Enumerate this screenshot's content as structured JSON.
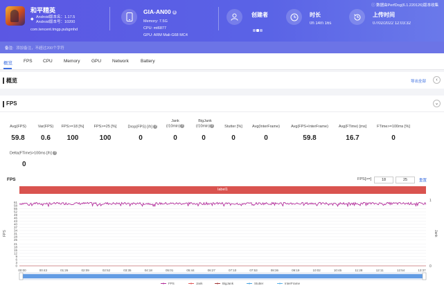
{
  "app": {
    "name": "和平精英",
    "android_version": "Android版本名：1.17.5",
    "android_code": "Android版本号：10200",
    "package": "com.tencent.tmgp.pubgmhd"
  },
  "device": {
    "name": "GIA-AN00",
    "badge": "4",
    "memory": "Memory: 7.5G",
    "cpu": "CPU: mt6877",
    "gpu": "GPU: ARM Mali-G68 MC4"
  },
  "creator": {
    "label": "创建者"
  },
  "duration": {
    "label": "时长",
    "value": "0h 14m 16s"
  },
  "upload": {
    "label": "上传时间",
    "value": "07/02/2022 12:03:32"
  },
  "perfdog": "数据由PerfDog(6.1.220126)版本收集",
  "note": {
    "label": "备注:",
    "placeholder": "添加备注，不超过200个字符"
  },
  "tabs": [
    "概览",
    "FPS",
    "CPU",
    "Memory",
    "GPU",
    "Network",
    "Battery"
  ],
  "overview": {
    "title": "概览",
    "export": "导出全部"
  },
  "fps_section": {
    "title": "FPS",
    "metrics": [
      {
        "label": "Avg(FPS)",
        "value": "59.8"
      },
      {
        "label": "Var(FPS)",
        "value": "0.6"
      },
      {
        "label": "FPS>=18 [%]",
        "value": "100"
      },
      {
        "label": "FPS>=25 [%]",
        "value": "100"
      },
      {
        "label": "Drop(FPS) [/h]",
        "value": "0"
      },
      {
        "label": "Jank\n(/10min)",
        "value": "0"
      },
      {
        "label": "BigJank\n(/10min)",
        "value": "0"
      },
      {
        "label": "Stutter [%]",
        "value": "0"
      },
      {
        "label": "Avg(InterFrame)",
        "value": "0"
      },
      {
        "label": "Avg(FPS+InterFrame)",
        "value": "59.8"
      },
      {
        "label": "Avg(FTime) [ms]",
        "value": "16.7"
      },
      {
        "label": "FTime>=100ms [%]",
        "value": "0"
      },
      {
        "label": "Delta(FTime)>100ms [/h]",
        "value": "0"
      }
    ]
  },
  "chart_header": {
    "label": "FPS",
    "filter_label": "FPS[>=]",
    "filter_1": "18",
    "filter_2": "25",
    "reset": "重置",
    "band_label": "label1"
  },
  "chart_data": {
    "type": "line",
    "ylabel": "FPS",
    "y2label": "Jank",
    "yticks": [
      0,
      3,
      6,
      9,
      12,
      15,
      18,
      21,
      25,
      28,
      31,
      34,
      37,
      40,
      43,
      46,
      49,
      52,
      55,
      58,
      61
    ],
    "y2ticks": [
      0,
      1
    ],
    "ylim": [
      0,
      64
    ],
    "xticks": [
      "00:00",
      "00:43",
      "01:26",
      "02:09",
      "02:52",
      "03:35",
      "04:18",
      "05:01",
      "05:44",
      "06:27",
      "07:10",
      "07:53",
      "08:36",
      "09:19",
      "10:02",
      "10:45",
      "11:28",
      "12:11",
      "12:54",
      "13:37"
    ],
    "series": [
      {
        "name": "FPS",
        "color": "#b22d9b",
        "y_approx": 60
      },
      {
        "name": "Jank",
        "color": "#e05858",
        "y_approx": 0
      },
      {
        "name": "BigJank",
        "color": "#a33a3a",
        "y_approx": 0
      },
      {
        "name": "Stutter",
        "color": "#4aa3df",
        "y_approx": 0
      },
      {
        "name": "InterFrame",
        "color": "#5ab0e8",
        "y_approx": 0
      }
    ]
  }
}
